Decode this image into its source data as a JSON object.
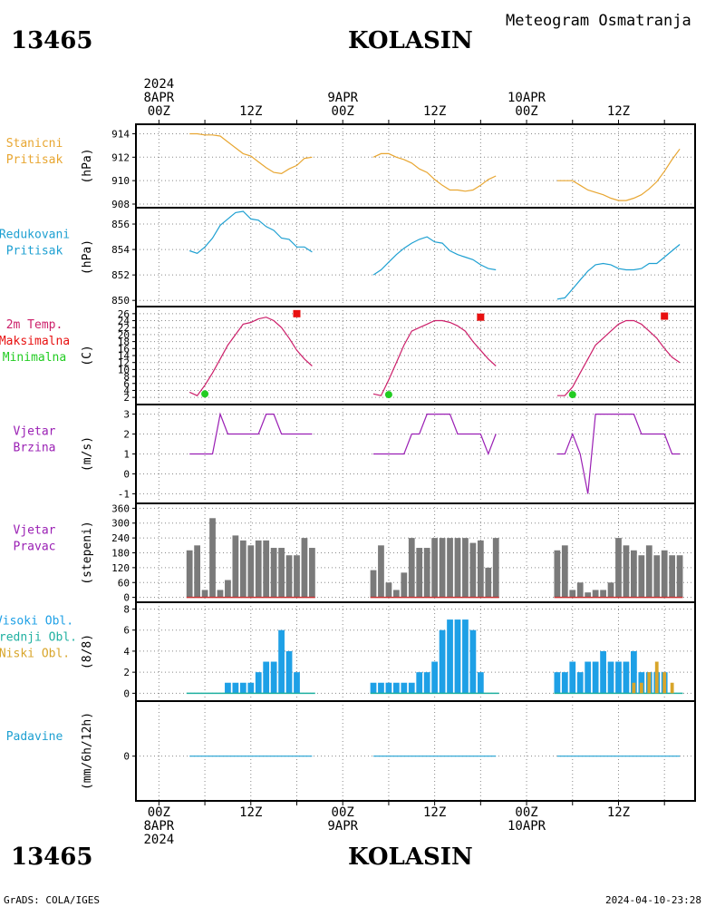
{
  "header": {
    "station_id": "13465",
    "station_name": "KOLASIN",
    "subtitle": "Meteogram Osmatranja"
  },
  "footer": {
    "credit": "GrADS: COLA/IGES",
    "timestamp": "2024-04-10-23:28"
  },
  "time_axis": {
    "top_dates": [
      {
        "hour": 0,
        "lines": [
          "2024",
          "8APR",
          "00Z"
        ]
      },
      {
        "hour": 12,
        "lines": [
          "12Z"
        ]
      },
      {
        "hour": 24,
        "lines": [
          "9APR",
          "00Z"
        ]
      },
      {
        "hour": 36,
        "lines": [
          "12Z"
        ]
      },
      {
        "hour": 48,
        "lines": [
          "10APR",
          "00Z"
        ]
      },
      {
        "hour": 60,
        "lines": [
          "12Z"
        ]
      }
    ],
    "bottom_dates": [
      {
        "hour": 0,
        "lines": [
          "00Z",
          "8APR",
          "2024"
        ]
      },
      {
        "hour": 12,
        "lines": [
          "12Z"
        ]
      },
      {
        "hour": 24,
        "lines": [
          "00Z",
          "9APR"
        ]
      },
      {
        "hour": 36,
        "lines": [
          "12Z"
        ]
      },
      {
        "hour": 48,
        "lines": [
          "00Z",
          "10APR"
        ]
      },
      {
        "hour": 60,
        "lines": [
          "12Z"
        ]
      }
    ],
    "x_range_hours": [
      -3,
      70
    ]
  },
  "colors": {
    "pressure": "#e8a631",
    "reduced_pressure": "#1ea0d2",
    "temperature": "#cc1f6a",
    "maximum": "#e81010",
    "minimum": "#22cc22",
    "wind": "#9a1fb4",
    "direction_bar": "#7a7a7a",
    "direction_base": "#c83232",
    "high_cloud": "#1ea0e6",
    "mid_cloud": "#1fb0a0",
    "low_cloud": "#d8a52a",
    "precip": "#1ea0d2"
  },
  "chart_data": [
    {
      "type": "line",
      "labels": [
        "Stanicni",
        "Pritisak"
      ],
      "label_colors": [
        "pressure",
        "pressure"
      ],
      "ylabel": "(hPa)",
      "ylim": [
        908,
        914.5
      ],
      "yticks": [
        908,
        910,
        912,
        914
      ],
      "grid": true,
      "series": [
        {
          "color": "pressure",
          "x": [
            4,
            5,
            6,
            7,
            8,
            9,
            10,
            11,
            12,
            13,
            14,
            15,
            16,
            17,
            18,
            19,
            20
          ],
          "y": [
            914,
            914,
            913.9,
            913.9,
            913.8,
            913.3,
            912.8,
            912.3,
            912.1,
            911.6,
            911.1,
            910.7,
            910.6,
            911.0,
            911.3,
            911.9,
            912.0
          ]
        },
        {
          "color": "pressure",
          "x": [
            28,
            29,
            30,
            31,
            32,
            33,
            34,
            35,
            36,
            37,
            38,
            39,
            40,
            41,
            42,
            43,
            44
          ],
          "y": [
            912.0,
            912.3,
            912.3,
            912.0,
            911.8,
            911.5,
            911.0,
            910.7,
            910.1,
            909.6,
            909.2,
            909.2,
            909.1,
            909.2,
            909.6,
            910.1,
            910.4
          ]
        },
        {
          "color": "pressure",
          "x": [
            52,
            53,
            54,
            55,
            56,
            57,
            58,
            59,
            60,
            61,
            62,
            63,
            64,
            65,
            66,
            67,
            68
          ],
          "y": [
            910.0,
            910.0,
            910.0,
            909.6,
            909.2,
            909.0,
            908.8,
            908.5,
            908.3,
            908.3,
            908.5,
            908.8,
            909.3,
            909.9,
            910.8,
            911.8,
            912.7
          ]
        }
      ]
    },
    {
      "type": "line",
      "labels": [
        "Redukovani",
        "Pritisak"
      ],
      "label_colors": [
        "reduced_pressure",
        "reduced_pressure"
      ],
      "ylabel": "(hPa)",
      "ylim": [
        849.8,
        857
      ],
      "yticks": [
        850,
        852,
        854,
        856
      ],
      "grid": true,
      "series": [
        {
          "color": "reduced_pressure",
          "x": [
            4,
            5,
            6,
            7,
            8,
            9,
            10,
            11,
            12,
            13,
            14,
            15,
            16,
            17,
            18,
            19,
            20
          ],
          "y": [
            853.9,
            853.7,
            854.2,
            854.9,
            855.9,
            856.4,
            856.9,
            857.0,
            856.4,
            856.3,
            855.8,
            855.5,
            854.9,
            854.8,
            854.2,
            854.2,
            853.8
          ]
        },
        {
          "color": "reduced_pressure",
          "x": [
            28,
            29,
            30,
            31,
            32,
            33,
            34,
            35,
            36,
            37,
            38,
            39,
            40,
            41,
            42,
            43,
            44
          ],
          "y": [
            852.0,
            852.4,
            853.0,
            853.6,
            854.1,
            854.5,
            854.8,
            855.0,
            854.6,
            854.5,
            853.9,
            853.6,
            853.4,
            853.2,
            852.8,
            852.5,
            852.4
          ]
        },
        {
          "color": "reduced_pressure",
          "x": [
            52,
            53,
            54,
            55,
            56,
            57,
            58,
            59,
            60,
            61,
            62,
            63,
            64,
            65,
            66,
            67,
            68
          ],
          "y": [
            850.1,
            850.2,
            850.9,
            851.6,
            852.3,
            852.8,
            852.9,
            852.8,
            852.5,
            852.4,
            852.4,
            852.5,
            852.9,
            852.9,
            853.4,
            853.9,
            854.4
          ]
        }
      ]
    },
    {
      "type": "line",
      "labels": [
        "2m Temp.",
        "Maksimalna",
        "Minimalna"
      ],
      "label_colors": [
        "temperature",
        "maximum",
        "minimum"
      ],
      "ylabel": "(C)",
      "ylim": [
        1,
        27
      ],
      "yticks": [
        2,
        4,
        6,
        8,
        10,
        12,
        14,
        16,
        18,
        20,
        22,
        24,
        26
      ],
      "grid": true,
      "series": [
        {
          "color": "temperature",
          "x": [
            4,
            5,
            6,
            7,
            8,
            9,
            10,
            11,
            12,
            13,
            14,
            15,
            16,
            17,
            18,
            19,
            20
          ],
          "y": [
            3.5,
            2.5,
            5.5,
            9,
            13,
            17,
            20,
            23,
            23.5,
            24.5,
            25,
            24,
            22,
            19,
            15.5,
            13,
            11
          ]
        },
        {
          "color": "temperature",
          "x": [
            28,
            29,
            30,
            31,
            32,
            33,
            34,
            35,
            36,
            37,
            38,
            39,
            40,
            41,
            42,
            43,
            44
          ],
          "y": [
            3,
            2.5,
            7,
            12,
            17,
            21,
            22,
            23,
            24,
            24,
            23.5,
            22.5,
            21,
            18,
            15.5,
            13,
            11
          ]
        },
        {
          "color": "temperature",
          "x": [
            52,
            53,
            54,
            55,
            56,
            57,
            58,
            59,
            60,
            61,
            62,
            63,
            64,
            65,
            66,
            67,
            68
          ],
          "y": [
            2.5,
            2.5,
            5,
            9,
            13,
            17,
            19,
            21,
            23,
            24,
            24,
            23,
            21,
            19,
            16,
            13.5,
            12
          ]
        }
      ],
      "maximum": {
        "x": [
          18,
          42,
          66
        ],
        "y": [
          26,
          25,
          25.3
        ]
      },
      "minimum": {
        "x": [
          6,
          30,
          54
        ],
        "y": [
          3.0,
          2.8,
          2.8
        ]
      }
    },
    {
      "type": "line",
      "labels": [
        "Vjetar",
        "Brzina"
      ],
      "label_colors": [
        "wind",
        "wind"
      ],
      "ylabel": "(m/s)",
      "ylim": [
        -1.3,
        3.3
      ],
      "yticks": [
        -1,
        0,
        1,
        2,
        3
      ],
      "grid": true,
      "series": [
        {
          "color": "wind",
          "x": [
            4,
            5,
            6,
            7,
            8,
            9,
            10,
            11,
            12,
            13,
            14,
            15,
            16,
            17,
            18,
            19,
            20
          ],
          "y": [
            1,
            1,
            1,
            1,
            3,
            2,
            2,
            2,
            2,
            2,
            3,
            3,
            2,
            2,
            2,
            2,
            2
          ]
        },
        {
          "color": "wind",
          "x": [
            28,
            29,
            30,
            31,
            32,
            33,
            34,
            35,
            36,
            37,
            38,
            39,
            40,
            41,
            42,
            43,
            44
          ],
          "y": [
            1,
            1,
            1,
            1,
            1,
            2,
            2,
            3,
            3,
            3,
            3,
            2,
            2,
            2,
            2,
            1,
            2
          ]
        },
        {
          "color": "wind",
          "x": [
            52,
            53,
            54,
            55,
            56,
            57,
            58,
            59,
            60,
            61,
            62,
            63,
            64,
            65,
            66,
            67,
            68
          ],
          "y": [
            1,
            1,
            2,
            1,
            -1,
            3,
            3,
            3,
            3,
            3,
            3,
            2,
            2,
            2,
            2,
            1,
            1
          ]
        }
      ]
    },
    {
      "type": "bar",
      "labels": [
        "Vjetar",
        "Pravac"
      ],
      "label_colors": [
        "wind",
        "wind"
      ],
      "ylabel": "(stepeni)",
      "ylim": [
        -5,
        365
      ],
      "yticks": [
        0,
        60,
        120,
        180,
        240,
        300,
        360
      ],
      "grid": true,
      "series": [
        {
          "color": "direction_bar",
          "x": [
            4,
            5,
            6,
            7,
            8,
            9,
            10,
            11,
            12,
            13,
            14,
            15,
            16,
            17,
            18,
            19,
            20
          ],
          "values": [
            190,
            210,
            30,
            320,
            30,
            70,
            250,
            230,
            210,
            230,
            230,
            200,
            200,
            170,
            170,
            240,
            200
          ]
        },
        {
          "color": "direction_bar",
          "x": [
            28,
            29,
            30,
            31,
            32,
            33,
            34,
            35,
            36,
            37,
            38,
            39,
            40,
            41,
            42,
            43,
            44
          ],
          "values": [
            110,
            210,
            60,
            30,
            100,
            240,
            200,
            200,
            240,
            240,
            240,
            240,
            240,
            220,
            230,
            120,
            240
          ]
        },
        {
          "color": "direction_bar",
          "x": [
            52,
            53,
            54,
            55,
            56,
            57,
            58,
            59,
            60,
            61,
            62,
            63,
            64,
            65,
            66,
            67,
            68
          ],
          "values": [
            190,
            210,
            30,
            60,
            20,
            30,
            30,
            60,
            240,
            210,
            190,
            170,
            210,
            170,
            190,
            170,
            170
          ]
        }
      ]
    },
    {
      "type": "bar",
      "labels": [
        "Visoki Obl.",
        "Srednji Obl.",
        "Niski Obl."
      ],
      "label_colors": [
        "high_cloud",
        "mid_cloud",
        "low_cloud"
      ],
      "ylabel": "(8/8)",
      "ylim": [
        -0.4,
        8.3
      ],
      "yticks": [
        0,
        2,
        4,
        6,
        8
      ],
      "grid": true,
      "series": [
        {
          "name": "Visoki Obl.",
          "color": "high_cloud",
          "x": [
            4,
            5,
            6,
            7,
            8,
            9,
            10,
            11,
            12,
            13,
            14,
            15,
            16,
            17,
            18,
            19,
            20
          ],
          "values": [
            0,
            0,
            0,
            0,
            0,
            1,
            1,
            1,
            1,
            2,
            3,
            3,
            6,
            4,
            2,
            0,
            0
          ]
        },
        {
          "name": "Visoki Obl.",
          "color": "high_cloud",
          "x": [
            28,
            29,
            30,
            31,
            32,
            33,
            34,
            35,
            36,
            37,
            38,
            39,
            40,
            41,
            42,
            43,
            44
          ],
          "values": [
            1,
            1,
            1,
            1,
            1,
            1,
            2,
            2,
            3,
            6,
            7,
            7,
            7,
            6,
            2,
            0,
            0
          ]
        },
        {
          "name": "Visoki Obl.",
          "color": "high_cloud",
          "x": [
            52,
            53,
            54,
            55,
            56,
            57,
            58,
            59,
            60,
            61,
            62,
            63,
            64,
            65,
            66,
            67,
            68
          ],
          "values": [
            2,
            2,
            3,
            2,
            3,
            3,
            4,
            3,
            3,
            3,
            4,
            2,
            2,
            2,
            2,
            0,
            0
          ]
        },
        {
          "name": "Niski Obl.",
          "color": "low_cloud",
          "x": [
            62,
            63,
            64,
            65,
            66,
            67
          ],
          "values": [
            1,
            1,
            2,
            3,
            2,
            1
          ]
        }
      ]
    },
    {
      "type": "line",
      "labels": [
        "Padavine"
      ],
      "label_colors": [
        "precip"
      ],
      "ylabel": "(mm/6h/12h)",
      "ylim": [
        -4,
        5
      ],
      "yticks": [
        0
      ],
      "grid": true,
      "series": [
        {
          "color": "precip",
          "x": [
            4,
            20
          ],
          "y": [
            0,
            0
          ]
        },
        {
          "color": "precip",
          "x": [
            28,
            44
          ],
          "y": [
            0,
            0
          ]
        },
        {
          "color": "precip",
          "x": [
            52,
            68
          ],
          "y": [
            0,
            0
          ]
        }
      ]
    }
  ]
}
